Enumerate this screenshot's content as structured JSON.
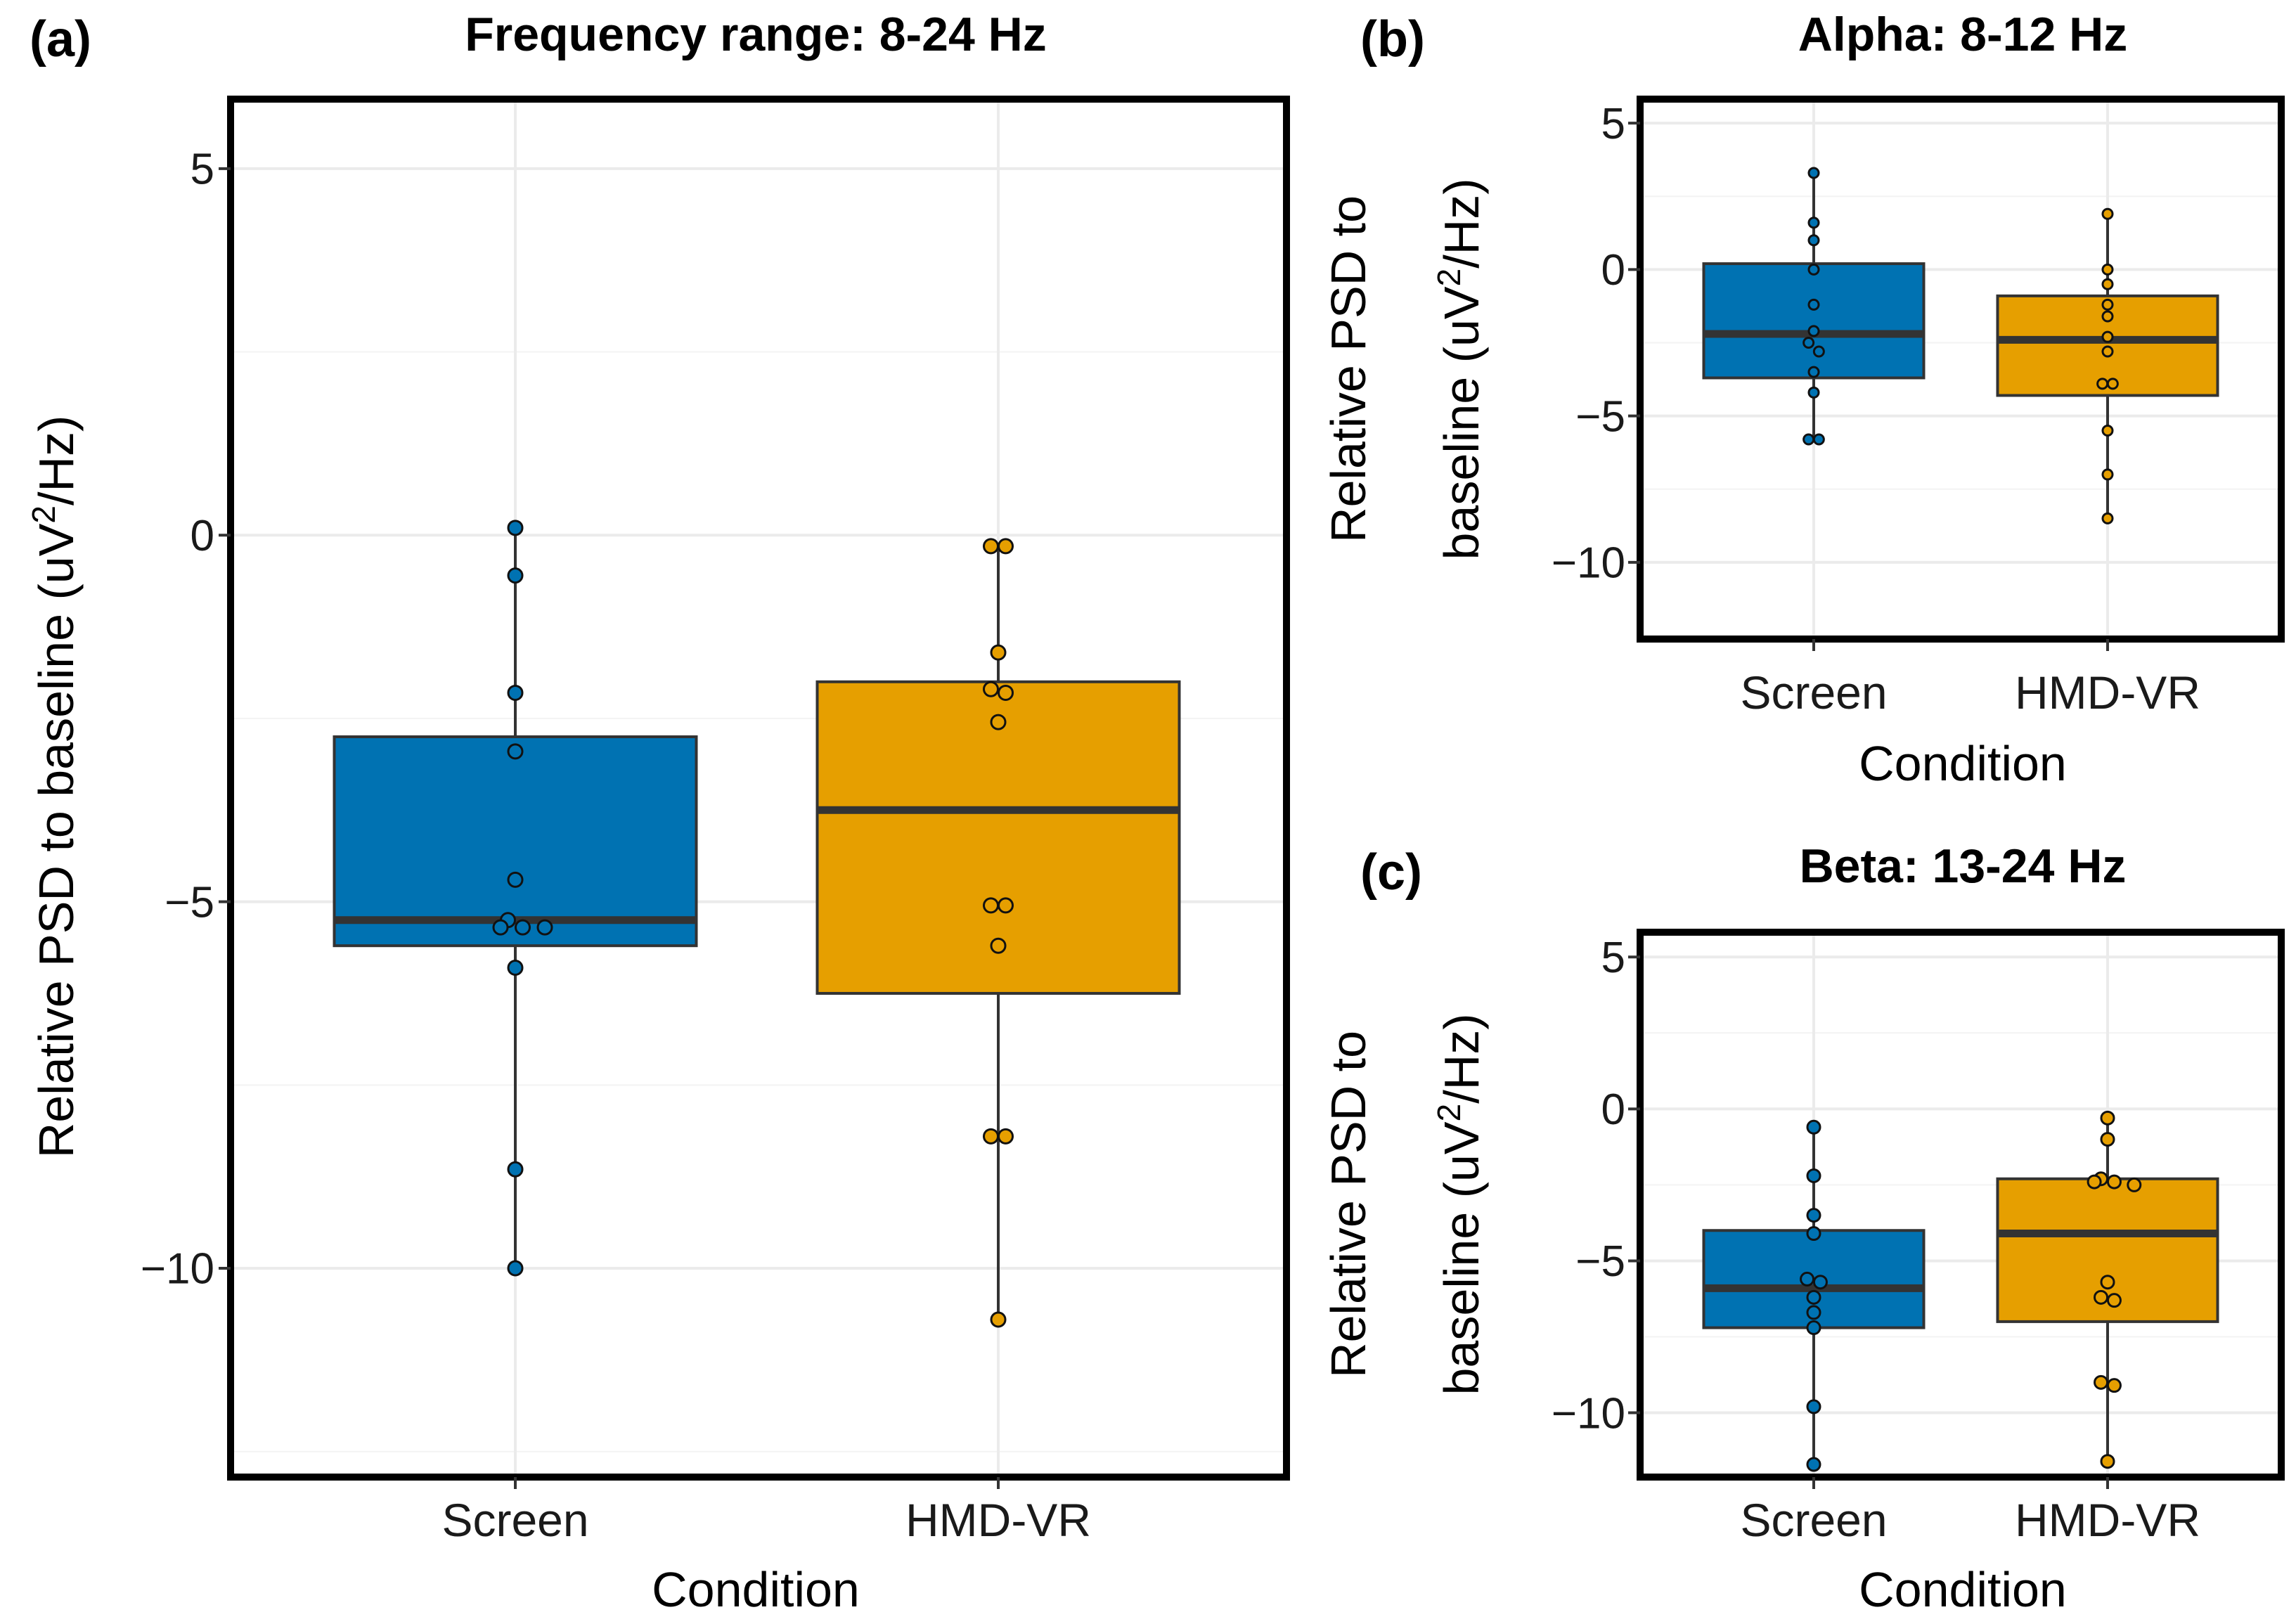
{
  "chart_data": [
    {
      "id": "a",
      "panel_label": "(a)",
      "type": "box",
      "title": "Frequency range: 8-24 Hz",
      "xlabel": "Condition",
      "ylabel_parts": [
        "Relative PSD to baseline (uV",
        "2",
        "/Hz)"
      ],
      "ylim": [
        -12.8,
        5.9
      ],
      "yticks": [
        5,
        0,
        -5,
        -10
      ],
      "ytick_labels": [
        "5",
        "0",
        "−5",
        "−10"
      ],
      "categories": [
        "Screen",
        "HMD-VR"
      ],
      "series": [
        {
          "name": "Screen",
          "color": "#0072B2",
          "whisker_low": -10.0,
          "q1": -5.6,
          "median": -5.25,
          "q3": -2.75,
          "whisker_high": 0.1,
          "points": [
            0.1,
            -0.55,
            -2.15,
            -2.95,
            -4.7,
            -5.25,
            -5.35,
            -5.35,
            -5.35,
            -5.9,
            -8.65,
            -10.0
          ]
        },
        {
          "name": "HMD-VR",
          "color": "#E69F00",
          "whisker_low": -10.7,
          "q1": -6.25,
          "median": -3.75,
          "q3": -2.0,
          "whisker_high": -0.15,
          "points": [
            -0.15,
            -0.15,
            -1.6,
            -2.1,
            -2.15,
            -2.55,
            -5.05,
            -5.05,
            -5.6,
            -8.2,
            -8.2,
            -10.7
          ]
        }
      ]
    },
    {
      "id": "b",
      "panel_label": "(b)",
      "type": "box",
      "title": "Alpha: 8-12 Hz",
      "xlabel": "Condition",
      "ylabel_line1": "Relative PSD to",
      "ylabel_line2_parts": [
        "baseline (uV",
        "2",
        "/Hz)"
      ],
      "ylim": [
        -12.5,
        5.7
      ],
      "yticks": [
        5,
        0,
        -5,
        -10
      ],
      "ytick_labels": [
        "5",
        "0",
        "−5",
        "−10"
      ],
      "categories": [
        "Screen",
        "HMD-VR"
      ],
      "series": [
        {
          "name": "Screen",
          "color": "#0072B2",
          "whisker_low": -5.8,
          "q1": -3.7,
          "median": -2.2,
          "q3": 0.2,
          "whisker_high": 3.3,
          "points": [
            3.3,
            1.6,
            1.0,
            0.0,
            -1.2,
            -2.1,
            -2.5,
            -2.8,
            -3.5,
            -4.2,
            -5.8,
            -5.8
          ]
        },
        {
          "name": "HMD-VR",
          "color": "#E69F00",
          "whisker_low": -8.5,
          "q1": -4.3,
          "median": -2.4,
          "q3": -0.9,
          "whisker_high": 1.9,
          "points": [
            1.9,
            0.0,
            -0.5,
            -1.2,
            -1.6,
            -2.3,
            -2.8,
            -3.9,
            -3.9,
            -5.5,
            -7.0,
            -8.5
          ]
        }
      ]
    },
    {
      "id": "c",
      "panel_label": "(c)",
      "type": "box",
      "title": "Beta: 13-24 Hz",
      "xlabel": "Condition",
      "ylabel_line1": "Relative PSD to",
      "ylabel_line2_parts": [
        "baseline (uV",
        "2",
        "/Hz)"
      ],
      "ylim": [
        -12.0,
        5.7
      ],
      "yticks": [
        5,
        0,
        -5,
        -10
      ],
      "ytick_labels": [
        "5",
        "0",
        "−5",
        "−10"
      ],
      "categories": [
        "Screen",
        "HMD-VR"
      ],
      "series": [
        {
          "name": "Screen",
          "color": "#0072B2",
          "whisker_low": -11.7,
          "q1": -7.2,
          "median": -5.9,
          "q3": -4.0,
          "whisker_high": -0.6,
          "points": [
            -0.6,
            -2.2,
            -3.5,
            -4.1,
            -5.6,
            -5.7,
            -6.2,
            -6.7,
            -7.2,
            -9.8,
            -11.7
          ]
        },
        {
          "name": "HMD-VR",
          "color": "#E69F00",
          "whisker_low": -11.6,
          "q1": -7.0,
          "median": -4.1,
          "q3": -2.3,
          "whisker_high": -0.3,
          "points": [
            -0.3,
            -1.0,
            -2.3,
            -2.4,
            -2.4,
            -2.5,
            -5.7,
            -6.2,
            -6.3,
            -9.0,
            -9.1,
            -11.6
          ]
        }
      ]
    }
  ]
}
